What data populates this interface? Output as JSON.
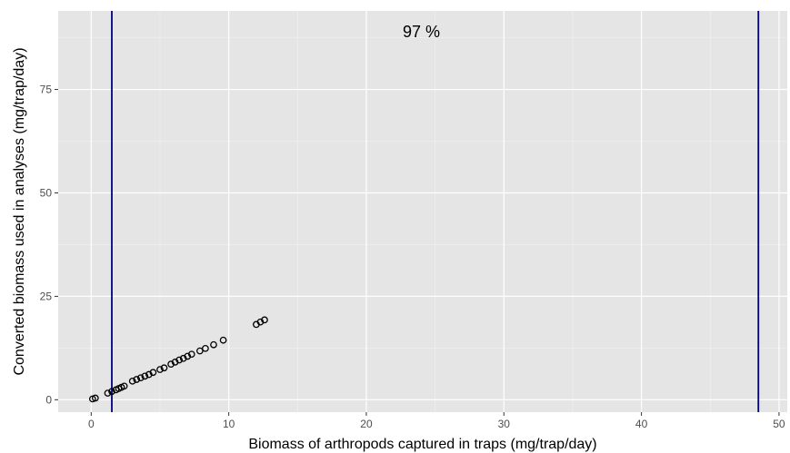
{
  "chart_data": {
    "type": "scatter",
    "title": "",
    "xlabel": "Biomass of arthropods captured in traps (mg/trap/day)",
    "ylabel": "Converted biomass used in analyses (mg/trap/day)",
    "xlim": [
      -2.4,
      50.6
    ],
    "ylim": [
      -3,
      94
    ],
    "x_ticks": [
      0,
      10,
      20,
      30,
      40,
      50
    ],
    "x_tick_labels": [
      "0",
      "10",
      "20",
      "30",
      "40",
      "50"
    ],
    "y_ticks": [
      0,
      25,
      50,
      75
    ],
    "y_tick_labels": [
      "0",
      "25",
      "50",
      "75"
    ],
    "grid": true,
    "legend": "none",
    "annotations": [
      {
        "text": "97 %",
        "x": 24,
        "y": 89
      }
    ],
    "vlines": [
      1.5,
      48.5
    ],
    "series": [
      {
        "points": [
          [
            0.1,
            0.2
          ],
          [
            0.3,
            0.4
          ],
          [
            1.2,
            1.6
          ],
          [
            1.5,
            2.0
          ],
          [
            1.8,
            2.4
          ],
          [
            2.0,
            2.7
          ],
          [
            2.2,
            3.0
          ],
          [
            2.4,
            3.3
          ],
          [
            3.0,
            4.5
          ],
          [
            3.3,
            4.9
          ],
          [
            3.6,
            5.3
          ],
          [
            3.9,
            5.7
          ],
          [
            4.2,
            6.1
          ],
          [
            4.5,
            6.6
          ],
          [
            5.0,
            7.3
          ],
          [
            5.3,
            7.7
          ],
          [
            5.8,
            8.6
          ],
          [
            6.1,
            9.1
          ],
          [
            6.4,
            9.6
          ],
          [
            6.7,
            10.0
          ],
          [
            7.0,
            10.5
          ],
          [
            7.3,
            11.0
          ],
          [
            7.9,
            11.8
          ],
          [
            8.3,
            12.4
          ],
          [
            8.9,
            13.3
          ],
          [
            9.6,
            14.4
          ],
          [
            12.0,
            18.2
          ],
          [
            12.3,
            18.8
          ],
          [
            12.6,
            19.3
          ]
        ]
      }
    ],
    "colors": {
      "panel": "#e5e5e5",
      "grid_major": "#ffffff",
      "grid_minor": "#f2f2f2",
      "points": "#000000",
      "vlines": "#000080"
    }
  }
}
